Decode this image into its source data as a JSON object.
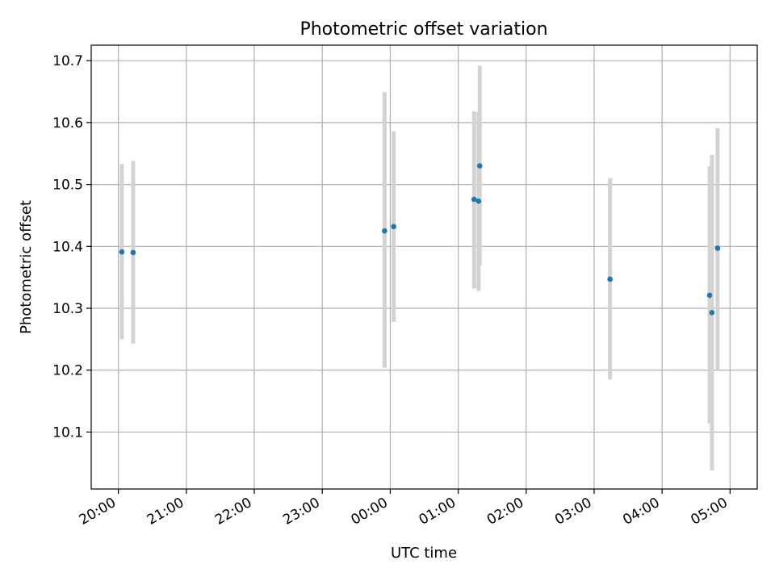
{
  "chart_data": {
    "type": "scatter",
    "title": "Photometric offset variation",
    "xlabel": "UTC time",
    "ylabel": "Photometric offset",
    "grid": true,
    "x_unit": "UTC time of night",
    "xlim": [
      "19:36",
      "05:24"
    ],
    "ylim": [
      10.008,
      10.725
    ],
    "x_ticks": [
      "20:00",
      "21:00",
      "22:00",
      "23:00",
      "00:00",
      "01:00",
      "02:00",
      "03:00",
      "04:00",
      "05:00"
    ],
    "y_ticks": [
      "10.1",
      "10.2",
      "10.3",
      "10.4",
      "10.5",
      "10.6",
      "10.7"
    ],
    "colors": {
      "point": "#1f77b4",
      "errorbar": "#d3d3d3",
      "grid": "#b0b0b0"
    },
    "points": [
      {
        "x": "20:03",
        "y": 10.391,
        "y_low": 10.25,
        "y_high": 10.533
      },
      {
        "x": "20:13",
        "y": 10.39,
        "y_low": 10.243,
        "y_high": 10.538
      },
      {
        "x": "23:55",
        "y": 10.425,
        "y_low": 10.204,
        "y_high": 10.649
      },
      {
        "x": "00:03",
        "y": 10.432,
        "y_low": 10.278,
        "y_high": 10.586
      },
      {
        "x": "01:14",
        "y": 10.476,
        "y_low": 10.332,
        "y_high": 10.618
      },
      {
        "x": "01:18",
        "y": 10.473,
        "y_low": 10.328,
        "y_high": 10.617
      },
      {
        "x": "01:19",
        "y": 10.53,
        "y_low": 10.369,
        "y_high": 10.692
      },
      {
        "x": "03:14",
        "y": 10.347,
        "y_low": 10.185,
        "y_high": 10.51
      },
      {
        "x": "04:42",
        "y": 10.321,
        "y_low": 10.114,
        "y_high": 10.529
      },
      {
        "x": "04:44",
        "y": 10.293,
        "y_low": 10.038,
        "y_high": 10.548
      },
      {
        "x": "04:49",
        "y": 10.397,
        "y_low": 10.2,
        "y_high": 10.591
      }
    ]
  }
}
